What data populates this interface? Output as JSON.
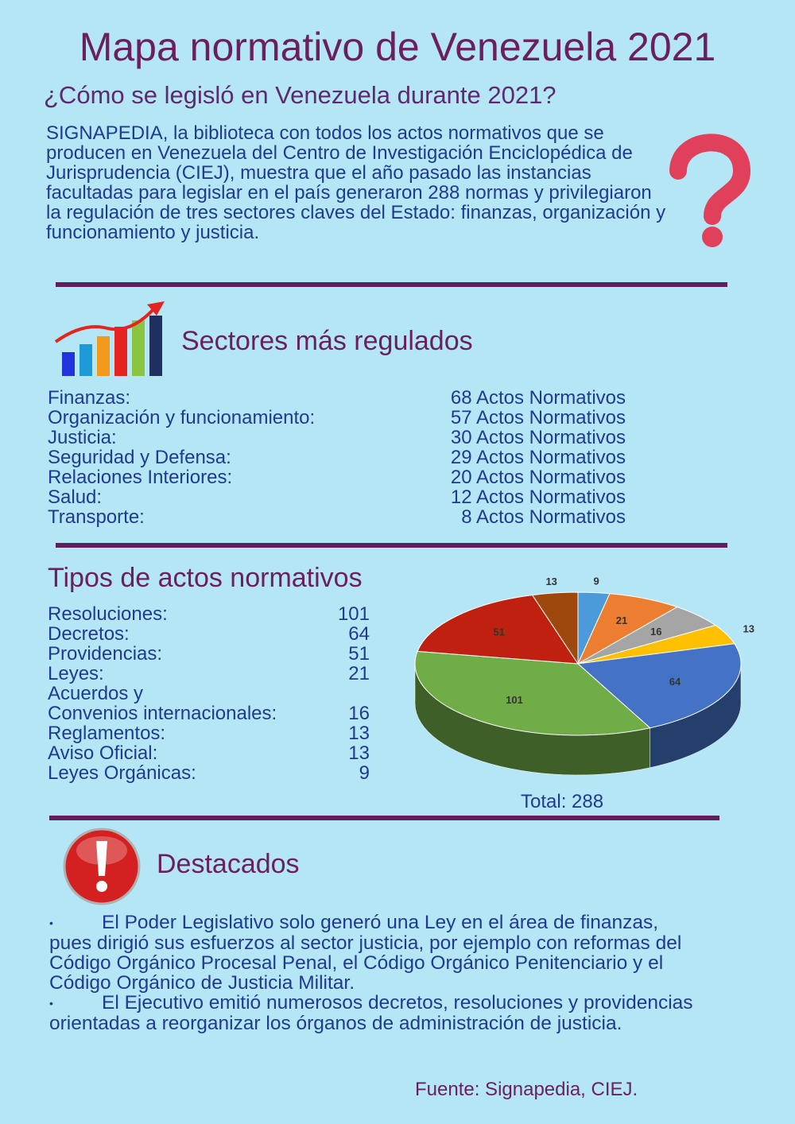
{
  "title": "Mapa normativo de Venezuela 2021",
  "subtitle": "¿Cómo se legisló en Venezuela durante 2021?",
  "intro": "SIGNAPEDIA, la biblioteca con todos los actos normativos que se producen en Venezuela del Centro de Investigación Enciclopédica de Jurisprudencia (CIEJ), muestra que el año pasado las instancias facultadas para legislar en el país generaron 288 normas y privilegiaron la regulación de tres sectores claves del Estado: finanzas, organización y funcionamiento y justicia.",
  "sectors": {
    "heading": "Sectores más regulados",
    "rows": [
      [
        "Finanzas:",
        "68 Actos Normativos"
      ],
      [
        "Organización y funcionamiento:",
        "57 Actos Normativos"
      ],
      [
        "Justicia:",
        "30 Actos Normativos"
      ],
      [
        "Seguridad y Defensa:",
        "29 Actos Normativos"
      ],
      [
        "Relaciones Interiores:",
        "20 Actos Normativos"
      ],
      [
        "Salud:",
        "12 Actos Normativos"
      ],
      [
        "Transporte:",
        "8 Actos Normativos"
      ]
    ]
  },
  "types": {
    "heading": "Tipos de actos normativos",
    "rows": [
      [
        "Resoluciones:",
        "101"
      ],
      [
        "Decretos:",
        "64"
      ],
      [
        "Providencias:",
        "51"
      ],
      [
        "Leyes:",
        "21"
      ],
      [
        "Acuerdos y\nConvenios internacionales:",
        "16"
      ],
      [
        "Reglamentos:",
        "13"
      ],
      [
        "Aviso Oficial:",
        "13"
      ],
      [
        "Leyes Orgánicas:",
        "9"
      ]
    ],
    "total": "Total: 288"
  },
  "chart_data": {
    "type": "pie",
    "values": [
      9,
      21,
      16,
      13,
      64,
      101,
      51,
      13
    ],
    "colors": [
      "#4b9ad9",
      "#ed7d31",
      "#a5a5a5",
      "#ffc000",
      "#4472c4",
      "#70ad47",
      "#c0200f",
      "#9e480e"
    ]
  },
  "highlights": {
    "heading": "Destacados",
    "bullets": [
      "El Poder Legislativo solo generó una Ley en el área de finanzas, pues dirigió sus esfuerzos al sector justicia, por ejemplo con reformas del Código Orgánico Procesal Penal, el Código Orgánico Penitenciario y el Código Orgánico de Justicia Militar.",
      "El Ejecutivo emitió numerosos decretos, resoluciones y providencias orientadas a reorganizar los órganos de administración de justicia."
    ]
  },
  "source": "Fuente: Signapedia, CIEJ."
}
